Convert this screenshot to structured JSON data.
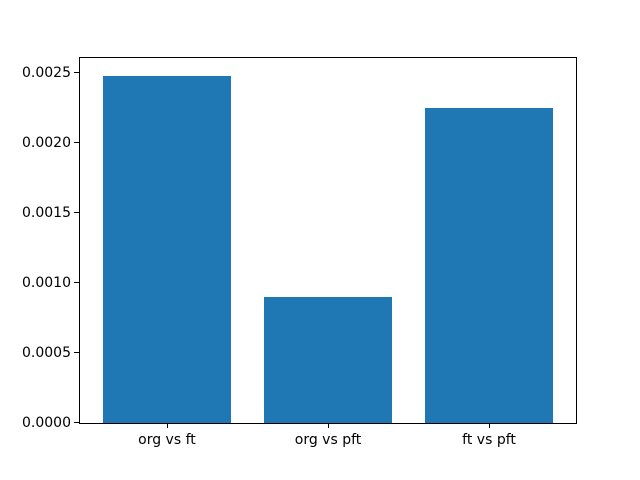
{
  "chart_data": {
    "type": "bar",
    "title": "",
    "xlabel": "",
    "ylabel": "",
    "categories": [
      "org vs ft",
      "org vs pft",
      "ft vs pft"
    ],
    "values": [
      0.00248,
      0.0009,
      0.00225
    ],
    "bar_color": "#1f77b4",
    "bar_width_fraction": 0.8,
    "xlim": [
      -0.54,
      2.54
    ],
    "ylim": [
      0,
      0.0026071
    ],
    "yticks": [
      0,
      0.0005,
      0.001,
      0.0015,
      0.002,
      0.0025
    ],
    "ytick_labels": [
      "0.0000",
      "0.0005",
      "0.0010",
      "0.0015",
      "0.0020",
      "0.0025"
    ],
    "grid": false,
    "legend": false,
    "background_color": "#ffffff",
    "spine_color": "#000000",
    "tick_color": "#000000",
    "text_color": "#000000"
  }
}
